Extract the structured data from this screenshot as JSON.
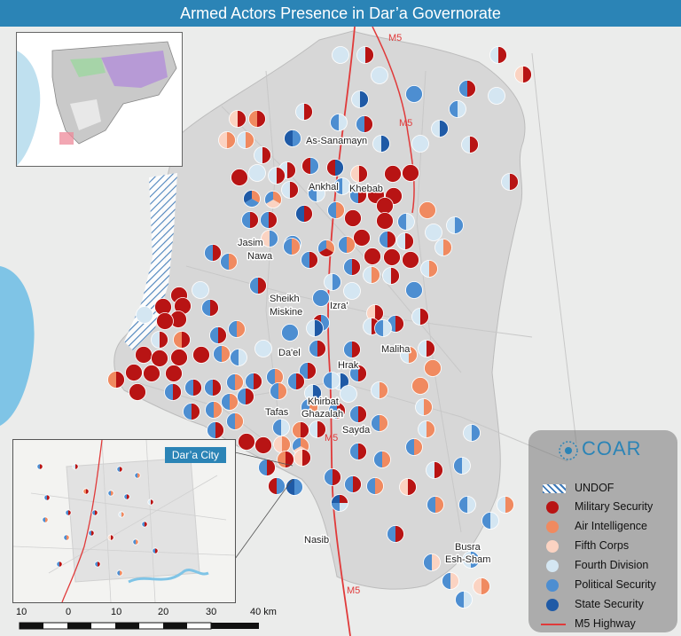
{
  "title": "Armed Actors Presence in Dar’a Governorate",
  "highway_labels": [
    "M5",
    "M5",
    "M5",
    "M5"
  ],
  "towns": [
    "As-Sanamayn",
    "Ankhal",
    "Khebab",
    "Jasim",
    "Nawa",
    "Sheikh",
    "Miskine",
    "Izra'",
    "Da'el",
    "Maliha",
    "Hrak",
    "Khirbat",
    "Ghazalah",
    "Tafas",
    "Sayda",
    "Nasib",
    "Busra",
    "Esh-Sham"
  ],
  "inset_daraa": {
    "title": "Dar’a City"
  },
  "legend": {
    "logo": "COAR",
    "items": [
      {
        "label": "UNDOF",
        "color": "#3b78b8",
        "kind": "hatch"
      },
      {
        "label": "Military Security",
        "color": "#b81414",
        "kind": "dot"
      },
      {
        "label": "Air Intelligence",
        "color": "#f08a60",
        "kind": "dot"
      },
      {
        "label": "Fifth Corps",
        "color": "#fbd3c2",
        "kind": "dot"
      },
      {
        "label": "Fourth Division",
        "color": "#d4e6f2",
        "kind": "dot"
      },
      {
        "label": "Political Security",
        "color": "#4d8ed1",
        "kind": "dot"
      },
      {
        "label": "State Security",
        "color": "#1f5aa6",
        "kind": "dot"
      },
      {
        "label": "M5 Highway",
        "color": "#e03a3a",
        "kind": "line"
      }
    ]
  },
  "scale": {
    "ticks": [
      "10",
      "0",
      "10",
      "20",
      "30",
      "40 km"
    ]
  }
}
